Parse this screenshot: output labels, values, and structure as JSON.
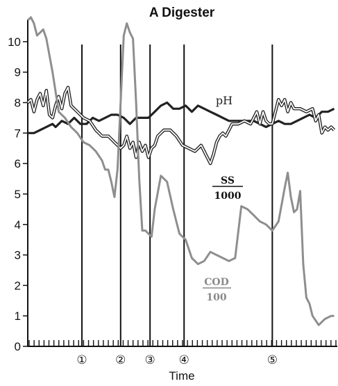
{
  "chart_data": {
    "type": "line",
    "title": "A Digester",
    "xlabel": "Time",
    "ylabel": "",
    "ylim": [
      0,
      10.5
    ],
    "xlim": [
      0,
      100
    ],
    "yticks": [
      "0",
      "1",
      "2",
      "3",
      "4",
      "5",
      "6",
      "7",
      "8",
      "9",
      "10"
    ],
    "grid": false,
    "events": [
      {
        "label": "①",
        "x": 17.5
      },
      {
        "label": "②",
        "x": 30
      },
      {
        "label": "③",
        "x": 39.5
      },
      {
        "label": "④",
        "x": 50.5
      },
      {
        "label": "⑤",
        "x": 79
      }
    ],
    "annotations": {
      "ph": "pH",
      "ss_num": "SS",
      "ss_den": "1000",
      "cod_num": "COD",
      "cod_den": "100"
    },
    "colors": {
      "ph": "#222222",
      "ss": "#222222",
      "cod": "#8e8e8e",
      "events": "#111111"
    },
    "series": [
      {
        "key": "ph",
        "style": "thick",
        "x": [
          0,
          2,
          4,
          6,
          8,
          9,
          11,
          13,
          15,
          17,
          19,
          21,
          23,
          25,
          27,
          29,
          31,
          33,
          35,
          37,
          39,
          41,
          43,
          45,
          47,
          49,
          51,
          53,
          55,
          57,
          59,
          61,
          63,
          65,
          67,
          69,
          71,
          73,
          75,
          77,
          79,
          81,
          83,
          85,
          87,
          89,
          91,
          93,
          95,
          97,
          99
        ],
        "y": [
          7.0,
          7.0,
          7.1,
          7.2,
          7.3,
          7.2,
          7.4,
          7.3,
          7.5,
          7.3,
          7.3,
          7.5,
          7.4,
          7.5,
          7.6,
          7.6,
          7.5,
          7.3,
          7.5,
          7.5,
          7.5,
          7.7,
          7.9,
          8.0,
          7.8,
          7.8,
          7.9,
          7.7,
          7.9,
          7.8,
          7.7,
          7.6,
          7.5,
          7.4,
          7.4,
          7.4,
          7.4,
          7.4,
          7.3,
          7.2,
          7.3,
          7.4,
          7.3,
          7.3,
          7.4,
          7.5,
          7.6,
          7.5,
          7.7,
          7.7,
          7.8
        ]
      },
      {
        "key": "ss",
        "style": "double",
        "x": [
          0,
          1,
          2,
          3,
          4,
          5,
          6,
          7,
          8,
          9,
          10,
          11,
          12,
          13,
          14,
          16,
          18,
          20,
          22,
          24,
          26,
          28,
          30,
          31,
          32,
          33,
          34,
          35,
          36,
          37,
          38,
          39,
          40,
          41,
          42,
          44,
          46,
          48,
          50,
          52,
          54,
          56,
          58,
          59,
          60,
          61,
          62,
          63,
          64,
          65,
          66,
          68,
          70,
          72,
          73,
          74,
          75,
          76,
          77,
          78,
          79,
          80,
          81,
          82,
          83,
          84,
          85,
          86,
          88,
          90,
          92,
          93,
          94,
          95,
          96,
          97,
          98,
          99
        ],
        "y": [
          8.0,
          8.1,
          7.7,
          8.1,
          8.3,
          7.9,
          8.4,
          7.6,
          7.5,
          7.9,
          8.2,
          7.8,
          8.3,
          8.5,
          7.9,
          7.7,
          7.5,
          7.4,
          7.1,
          6.9,
          6.9,
          6.7,
          6.5,
          6.6,
          6.9,
          6.5,
          6.7,
          6.2,
          6.7,
          6.4,
          6.6,
          6.2,
          6.5,
          6.6,
          6.9,
          7.1,
          7.1,
          6.9,
          6.6,
          6.5,
          6.4,
          6.6,
          6.2,
          6.0,
          6.3,
          6.7,
          6.9,
          7.0,
          6.9,
          7.1,
          7.3,
          7.3,
          7.4,
          7.3,
          7.5,
          7.7,
          7.3,
          7.7,
          7.4,
          7.3,
          7.3,
          7.7,
          8.1,
          7.9,
          8.1,
          7.7,
          8.0,
          7.8,
          7.8,
          7.7,
          7.8,
          7.4,
          7.6,
          7.0,
          7.2,
          7.1,
          7.2,
          7.1
        ]
      },
      {
        "key": "cod",
        "style": "thick",
        "x": [
          0,
          1,
          2,
          3,
          4,
          5,
          6,
          8,
          10,
          12,
          14,
          16,
          18,
          20,
          22,
          24,
          25,
          26,
          27,
          28,
          29,
          30,
          31,
          32,
          33,
          34,
          35,
          36,
          37,
          38,
          39,
          40,
          41,
          43,
          45,
          47,
          49,
          51,
          53,
          55,
          57,
          59,
          61,
          63,
          65,
          67,
          69,
          71,
          73,
          75,
          77,
          79,
          81,
          83,
          84,
          85,
          86,
          87,
          88,
          89,
          90,
          91,
          92,
          94,
          96,
          98,
          99
        ],
        "y": [
          10.7,
          10.8,
          10.6,
          10.2,
          10.3,
          10.4,
          10.1,
          9.0,
          7.7,
          7.5,
          7.2,
          7.0,
          6.7,
          6.6,
          6.4,
          6.1,
          5.8,
          5.8,
          5.4,
          4.9,
          5.8,
          8.0,
          10.2,
          10.6,
          10.3,
          10.1,
          8.0,
          5.5,
          3.8,
          3.8,
          3.7,
          3.6,
          4.5,
          5.6,
          5.4,
          4.5,
          3.7,
          3.5,
          2.9,
          2.7,
          2.8,
          3.1,
          3.0,
          2.9,
          2.8,
          2.9,
          4.6,
          4.5,
          4.3,
          4.1,
          4.0,
          3.8,
          4.1,
          5.2,
          5.7,
          4.9,
          4.4,
          4.5,
          5.1,
          2.7,
          1.6,
          1.4,
          1.0,
          0.7,
          0.9,
          1.0,
          1.0
        ]
      }
    ]
  }
}
